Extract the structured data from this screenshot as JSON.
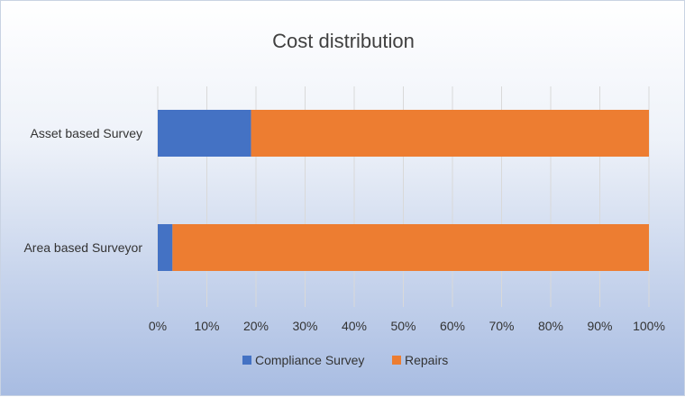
{
  "chart_data": {
    "type": "bar",
    "orientation": "horizontal",
    "stacked": "percent",
    "title": "Cost distribution",
    "categories": [
      "Asset based Survey",
      "Area based Surveyor"
    ],
    "series": [
      {
        "name": "Compliance Survey",
        "color": "#4472c4",
        "values": [
          19,
          3
        ]
      },
      {
        "name": "Repairs",
        "color": "#ed7d31",
        "values": [
          81,
          97
        ]
      }
    ],
    "xlim": [
      0,
      100
    ],
    "x_ticks": [
      "0%",
      "10%",
      "20%",
      "30%",
      "40%",
      "50%",
      "60%",
      "70%",
      "80%",
      "90%",
      "100%"
    ],
    "grid": "vertical",
    "legend": "bottom"
  }
}
